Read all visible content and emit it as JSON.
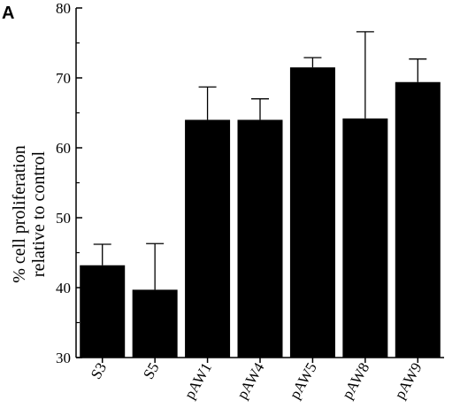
{
  "panel_label": "A",
  "chart_data": {
    "type": "bar",
    "categories": [
      "S3",
      "S5",
      "pAW1",
      "pAW4",
      "pAW5",
      "pAW8",
      "pAW9"
    ],
    "series": [
      {
        "values": [
          43.2,
          39.7,
          64.0,
          64.0,
          71.5,
          64.2,
          69.4
        ],
        "error_upper": [
          3.0,
          6.6,
          4.7,
          3.0,
          1.4,
          12.4,
          3.3
        ]
      }
    ],
    "ylabel_lines": [
      "% cell proliferation",
      "relative to control"
    ],
    "xlabel": "",
    "ylim": [
      30,
      80
    ],
    "yticks": [
      30,
      40,
      50,
      60,
      70,
      80
    ],
    "bar_color": "#000000"
  }
}
